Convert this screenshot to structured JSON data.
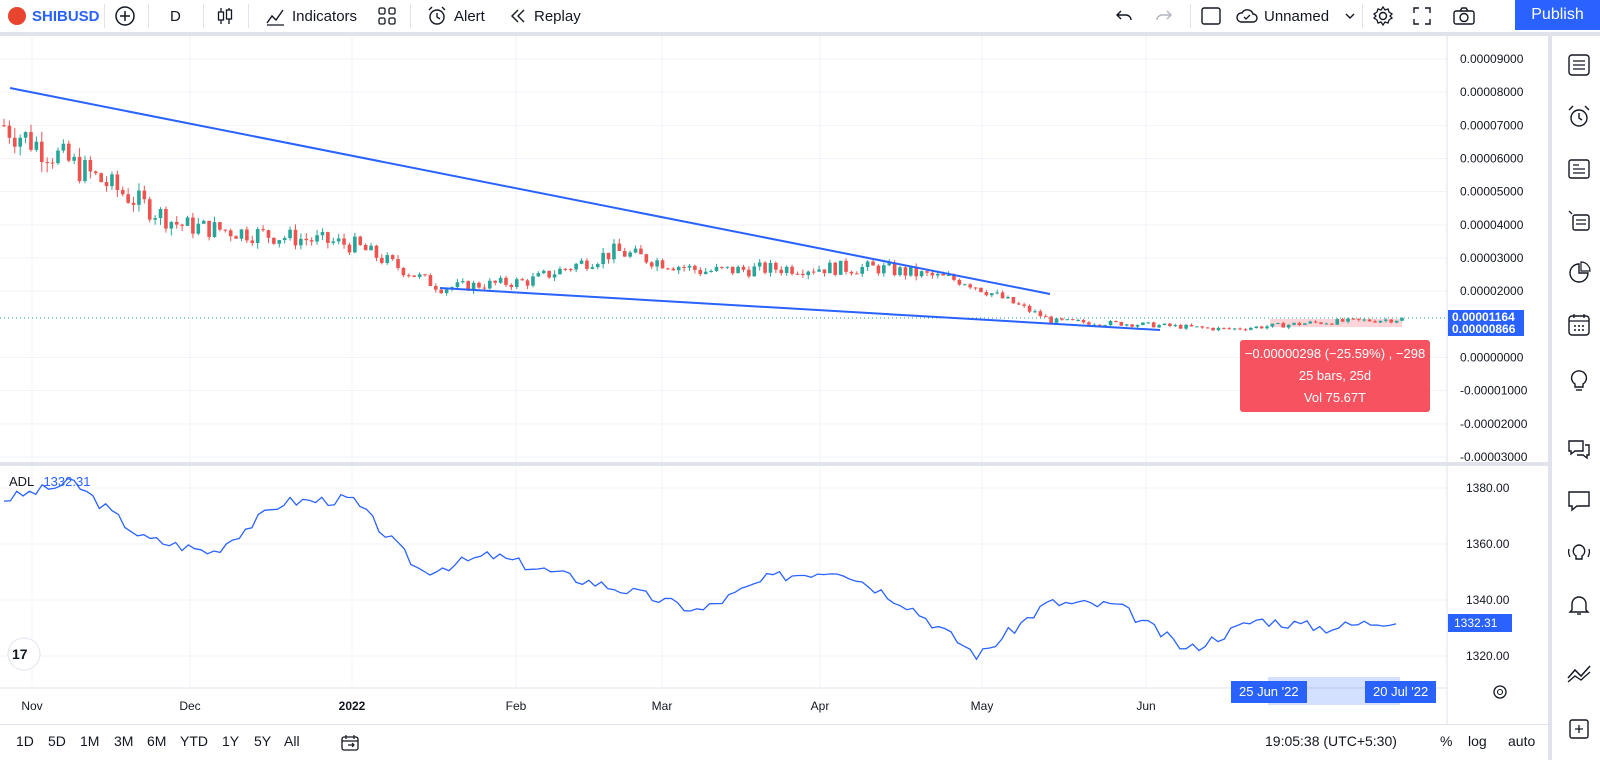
{
  "toolbar": {
    "symbol": "SHIBUSD",
    "interval": "D",
    "indicators_label": "Indicators",
    "alert_label": "Alert",
    "replay_label": "Replay",
    "layout_name": "Unnamed",
    "publish_label": "Publish"
  },
  "price_axis": {
    "ticks": [
      "0.00009000",
      "0.00008000",
      "0.00007000",
      "0.00006000",
      "0.00005000",
      "0.00004000",
      "0.00003000",
      "0.00002000",
      "0.00001164",
      "0.00000866",
      "0.00000000",
      "-0.00001000",
      "-0.00002000",
      "-0.00003000"
    ]
  },
  "current_price_label": "0.00001164",
  "cursor_price_label": "0.00000866",
  "measure_tooltip": {
    "line1": "−0.00000298 (−25.59%) , −298",
    "line2": "25 bars, 25d",
    "line3": "Vol 75.67T"
  },
  "adl": {
    "name": "ADL",
    "value": "1332.31",
    "ticks": [
      "1380.00",
      "1360.00",
      "1340.00",
      "1320.00"
    ],
    "last_label": "1332.31"
  },
  "time_axis": {
    "labels": [
      "Nov",
      "Dec",
      "2022",
      "Feb",
      "Mar",
      "Apr",
      "May",
      "Jun"
    ],
    "range_start": "25 Jun '22",
    "range_end": "20 Jul '22"
  },
  "bottom": {
    "ranges": [
      "1D",
      "5D",
      "1M",
      "3M",
      "6M",
      "YTD",
      "1Y",
      "5Y",
      "All"
    ],
    "clock": "19:05:38 (UTC+5:30)",
    "percent": "%",
    "log": "log",
    "auto": "auto"
  },
  "colors": {
    "up": "#26a69a",
    "down": "#ef5350",
    "line": "#2962ff",
    "adl": "#2962ff",
    "accent": "#2962ff"
  },
  "chart_data": [
    {
      "type": "candlestick",
      "title": "SHIBUSD",
      "ylim": [
        -3e-05,
        9e-05
      ],
      "x_range": [
        "2021-10-28",
        "2022-07-20"
      ],
      "series": [
        {
          "name": "SHIBUSD",
          "x": [
            "Oct 28",
            "Nov 15",
            "Dec 1",
            "Dec 15",
            "Jan 1",
            "Jan 20",
            "Feb 1",
            "Feb 10",
            "Mar 1",
            "Apr 1",
            "Apr 10",
            "May 1",
            "May 12",
            "Jun 1",
            "Jun 18",
            "Jul 1",
            "Jul 20"
          ],
          "values": [
            7e-05,
            5.5e-05,
            4e-05,
            3.7e-05,
            3.4e-05,
            2.1e-05,
            2.3e-05,
            3.2e-05,
            2.6e-05,
            2.7e-05,
            2.7e-05,
            2.3e-05,
            1.1e-05,
            1e-05,
            8.5e-06,
            1.05e-05,
            1.16e-05
          ]
        }
      ]
    },
    {
      "type": "line",
      "title": "ADL",
      "ylim": [
        1315,
        1385
      ],
      "series": [
        {
          "name": "ADL",
          "x": [
            "Oct 28",
            "Nov 10",
            "Dec 1",
            "Dec 15",
            "Jan 1",
            "Jan 10",
            "Jan 25",
            "Feb 1",
            "Feb 15",
            "Mar 1",
            "Mar 15",
            "Apr 1",
            "Apr 10",
            "May 1",
            "May 12",
            "Jun 1",
            "Jun 15",
            "Jun 25",
            "Jul 1",
            "Jul 10",
            "Jul 20"
          ],
          "values": [
            1376,
            1382,
            1362,
            1357,
            1375,
            1376,
            1350,
            1356,
            1349,
            1343,
            1336,
            1348,
            1351,
            1338,
            1320,
            1339,
            1338,
            1322,
            1333,
            1330,
            1333
          ]
        }
      ]
    }
  ]
}
